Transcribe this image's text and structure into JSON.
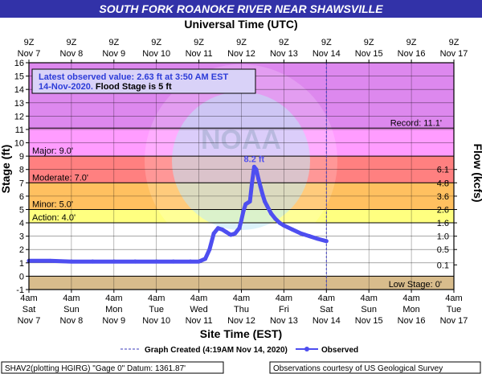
{
  "header": {
    "title": "SOUTH FORK ROANOKE RIVER NEAR SHAWSVILLE",
    "top_axis_title": "Universal Time (UTC)",
    "bottom_axis_title": "Site Time (EST)"
  },
  "latest_box": {
    "line1": "Latest observed value: 2.63 ft at 3:50 AM EST",
    "line2_date": "14-Nov-2020.",
    "line2_flood": " Flood Stage is 5 ft"
  },
  "legend": {
    "graph_created": "Graph Created (4:19AM Nov 14, 2020)",
    "observed": "Observed"
  },
  "footer": {
    "left": "SHAV2(plotting HGIRG) \"Gage 0\" Datum: 1361.87'",
    "right": "Observations courtesy of US Geological Survey"
  },
  "colors": {
    "title_bar": "#3232a8",
    "record": "#dd88ee",
    "major": "#ff9cff",
    "moderate": "#ff8080",
    "minor": "#ffc060",
    "action": "#ffff80",
    "normal": "#ffffff",
    "low": "#d8bc8c",
    "series": "#4e4ef0",
    "grid": "#000000"
  },
  "chart_data": {
    "type": "line",
    "ylabel": "Stage (ft)",
    "y2label": "Flow (kcfs)",
    "ylim": [
      -1,
      16
    ],
    "y_ticks": [
      "-1",
      "0",
      "1",
      "2",
      "3",
      "4",
      "5",
      "6",
      "7",
      "8",
      "9",
      "10",
      "11",
      "12",
      "13",
      "14",
      "15",
      "16"
    ],
    "y2_ticks": [
      {
        "stage": 0.85,
        "label": "0.1"
      },
      {
        "stage": 2.0,
        "label": "0.5"
      },
      {
        "stage": 3.0,
        "label": "1.0"
      },
      {
        "stage": 4.0,
        "label": "1.6"
      },
      {
        "stage": 5.0,
        "label": "2.6"
      },
      {
        "stage": 6.0,
        "label": "3.6"
      },
      {
        "stage": 7.0,
        "label": "4.8"
      },
      {
        "stage": 8.0,
        "label": "6.1"
      }
    ],
    "xlim": [
      "Nov 7 4am EST",
      "Nov 17 4am EST"
    ],
    "x_days": 10,
    "bottom_ticks": [
      {
        "l1": "4am",
        "l2": "Sat",
        "l3": "Nov 7"
      },
      {
        "l1": "4am",
        "l2": "Sun",
        "l3": "Nov 8"
      },
      {
        "l1": "4am",
        "l2": "Mon",
        "l3": "Nov 9"
      },
      {
        "l1": "4am",
        "l2": "Tue",
        "l3": "Nov 10"
      },
      {
        "l1": "4am",
        "l2": "Wed",
        "l3": "Nov 11"
      },
      {
        "l1": "4am",
        "l2": "Thu",
        "l3": "Nov 12"
      },
      {
        "l1": "4am",
        "l2": "Fri",
        "l3": "Nov 13"
      },
      {
        "l1": "4am",
        "l2": "Sat",
        "l3": "Nov 14"
      },
      {
        "l1": "4am",
        "l2": "Sun",
        "l3": "Nov 15"
      },
      {
        "l1": "4am",
        "l2": "Mon",
        "l3": "Nov 16"
      },
      {
        "l1": "4am",
        "l2": "Tue",
        "l3": "Nov 17"
      }
    ],
    "top_ticks": [
      {
        "l1": "9Z",
        "l2": "Nov 7"
      },
      {
        "l1": "9Z",
        "l2": "Nov 8"
      },
      {
        "l1": "9Z",
        "l2": "Nov 9"
      },
      {
        "l1": "9Z",
        "l2": "Nov 10"
      },
      {
        "l1": "9Z",
        "l2": "Nov 11"
      },
      {
        "l1": "9Z",
        "l2": "Nov 12"
      },
      {
        "l1": "9Z",
        "l2": "Nov 13"
      },
      {
        "l1": "9Z",
        "l2": "Nov 14"
      },
      {
        "l1": "9Z",
        "l2": "Nov 15"
      },
      {
        "l1": "9Z",
        "l2": "Nov 16"
      },
      {
        "l1": "9Z",
        "l2": "Nov 17"
      }
    ],
    "categories_bands": [
      {
        "name": "record",
        "from": 11.1,
        "to": 16,
        "label": "Record: 11.1'"
      },
      {
        "name": "major",
        "from": 9,
        "to": 11.1,
        "label": "Major: 9.0'"
      },
      {
        "name": "moderate",
        "from": 7,
        "to": 9,
        "label": "Moderate: 7.0'"
      },
      {
        "name": "minor",
        "from": 5,
        "to": 7,
        "label": "Minor: 5.0'"
      },
      {
        "name": "action",
        "from": 4,
        "to": 5,
        "label": "Action: 4.0'"
      },
      {
        "name": "normal",
        "from": 0,
        "to": 4,
        "label": ""
      },
      {
        "name": "low",
        "from": -1,
        "to": 0,
        "label": "Low Stage: 0'"
      }
    ],
    "peak_label": "8.2 ft",
    "peak": {
      "x": 5.3,
      "y": 8.2
    },
    "graph_created_x": 7.0,
    "series": [
      {
        "name": "Observed",
        "x": [
          0.0,
          0.5,
          1.0,
          1.5,
          2.0,
          2.5,
          3.0,
          3.4,
          3.8,
          4.0,
          4.15,
          4.25,
          4.35,
          4.45,
          4.55,
          4.65,
          4.75,
          4.85,
          4.95,
          5.0,
          5.05,
          5.1,
          5.15,
          5.2,
          5.25,
          5.3,
          5.35,
          5.4,
          5.45,
          5.5,
          5.55,
          5.6,
          5.7,
          5.8,
          5.9,
          6.0,
          6.2,
          6.4,
          6.6,
          6.8,
          7.0
        ],
        "y": [
          1.15,
          1.15,
          1.1,
          1.1,
          1.1,
          1.1,
          1.1,
          1.1,
          1.1,
          1.1,
          1.3,
          2.0,
          3.2,
          3.6,
          3.5,
          3.3,
          3.1,
          3.2,
          3.6,
          4.2,
          4.9,
          5.4,
          5.5,
          5.6,
          7.0,
          8.2,
          8.0,
          7.3,
          6.7,
          6.1,
          5.6,
          5.3,
          4.7,
          4.3,
          4.0,
          3.8,
          3.5,
          3.2,
          3.0,
          2.8,
          2.63
        ]
      }
    ]
  }
}
